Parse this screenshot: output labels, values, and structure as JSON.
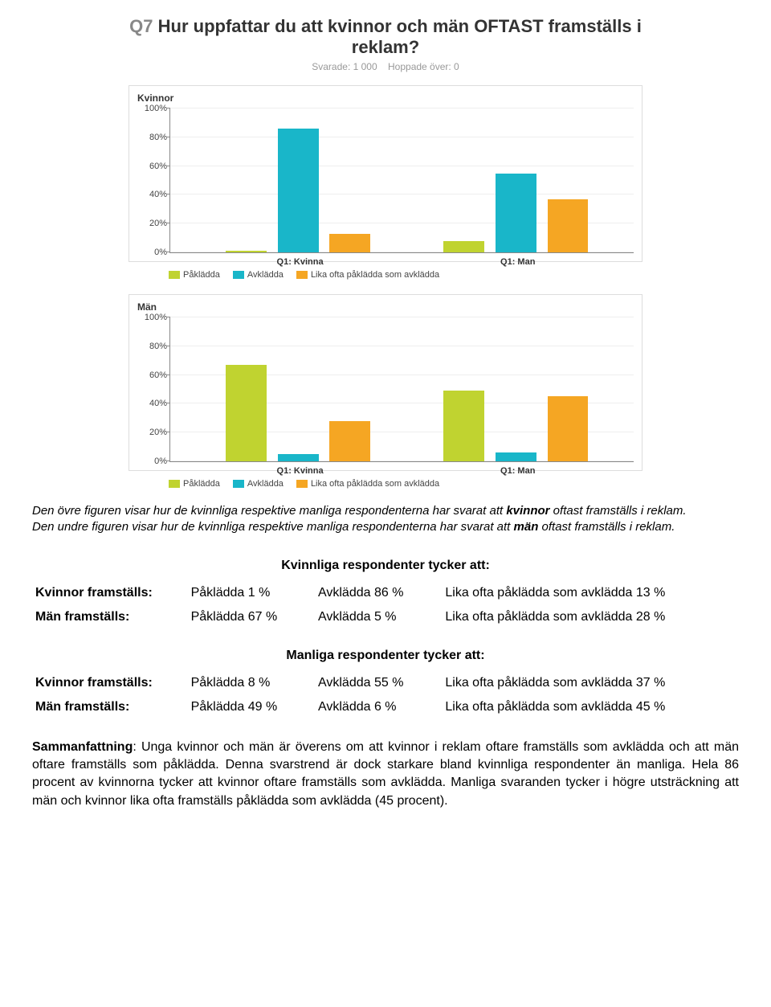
{
  "palette": {
    "paklaedda": "#c0d330",
    "avklaedda": "#19b6c9",
    "lika": "#f5a623",
    "grid": "#eeeeee",
    "axis": "#888888",
    "text": "#333333"
  },
  "question": {
    "qnum": "Q7",
    "title_a": "Hur uppfattar du att kvinnor och män OFTAST framställs i",
    "title_b": "reklam?"
  },
  "meta": {
    "svarade_label": "Svarade: 1 000",
    "hoppade_label": "Hoppade över: 0"
  },
  "chart_common": {
    "yticks": [
      "0%",
      "20%",
      "40%",
      "60%",
      "80%",
      "100%"
    ],
    "categories": [
      "Q1: Kvinna",
      "Q1: Man"
    ],
    "legend_labels": [
      "Påklädda",
      "Avklädda",
      "Lika ofta påklädda som avklädda"
    ],
    "ymax": 100
  },
  "chart1": {
    "panel_title": "Kvinnor",
    "series": [
      {
        "name": "Påklädda",
        "color_key": "paklaedda",
        "values": [
          1,
          8
        ]
      },
      {
        "name": "Avklädda",
        "color_key": "avklaedda",
        "values": [
          86,
          55
        ]
      },
      {
        "name": "Lika ofta",
        "color_key": "lika",
        "values": [
          13,
          37
        ]
      }
    ]
  },
  "chart2": {
    "panel_title": "Män",
    "series": [
      {
        "name": "Påklädda",
        "color_key": "paklaedda",
        "values": [
          67,
          49
        ]
      },
      {
        "name": "Avklädda",
        "color_key": "avklaedda",
        "values": [
          5,
          6
        ]
      },
      {
        "name": "Lika ofta",
        "color_key": "lika",
        "values": [
          28,
          45
        ]
      }
    ]
  },
  "caption": {
    "line1_a": "Den övre figuren visar hur de kvinnliga respektive manliga respondenterna har svarat att ",
    "line1_bold": "kvinnor",
    "line1_b": " oftast framställs i reklam.",
    "line2_a": "Den undre figuren visar hur de kvinnliga respektive manliga respondenterna har svarat att ",
    "line2_bold": "män",
    "line2_b": " oftast framställs i reklam."
  },
  "table1": {
    "title": "Kvinnliga respondenter tycker att:",
    "rows": [
      {
        "label": "Kvinnor framställs:",
        "c1": "Påklädda 1 %",
        "c2": "Avklädda 86 %",
        "c3": "Lika ofta påklädda som avklädda 13 %"
      },
      {
        "label": "Män framställs:",
        "c1": "Påklädda 67 %",
        "c2": "Avklädda 5 %",
        "c3": "Lika ofta påklädda som avklädda 28 %"
      }
    ]
  },
  "table2": {
    "title": "Manliga respondenter tycker att:",
    "rows": [
      {
        "label": "Kvinnor framställs:",
        "c1": "Påklädda 8 %",
        "c2": "Avklädda 55 %",
        "c3": "Lika ofta påklädda som avklädda 37 %"
      },
      {
        "label": "Män framställs:",
        "c1": "Påklädda 49 %",
        "c2": "Avklädda 6 %",
        "c3": "Lika ofta påklädda som avklädda 45 %"
      }
    ]
  },
  "summary": {
    "label": "Sammanfattning",
    "text": ": Unga kvinnor och män är överens om att kvinnor i reklam oftare framställs som avklädda och att män oftare framställs som påklädda. Denna svarstrend är dock starkare bland kvinnliga respondenter än manliga. Hela 86 procent av kvinnorna tycker att kvinnor oftare framställs som avklädda. Manliga svaranden tycker i högre utsträckning att män och kvinnor lika ofta framställs påklädda som avklädda (45 procent)."
  }
}
